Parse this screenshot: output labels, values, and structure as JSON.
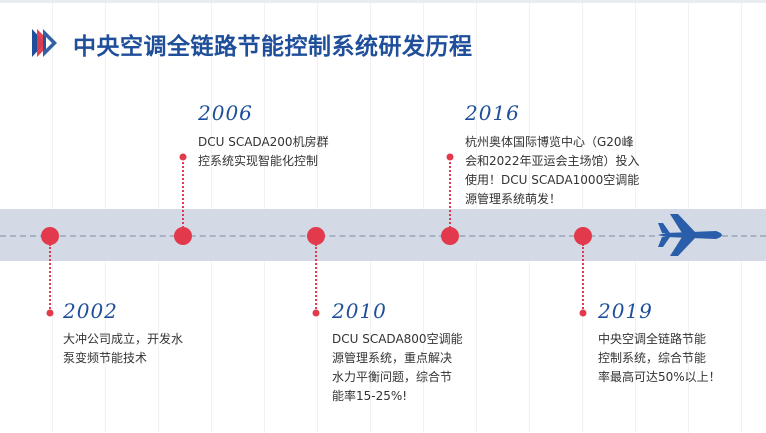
{
  "header": {
    "title": "中央空调全链路节能控制系统研发历程"
  },
  "colors": {
    "accent_blue": "#1f4f9a",
    "accent_red": "#e23a4c",
    "band": "#d3dae5"
  },
  "icons": [
    "logo-icon",
    "airplane-icon"
  ],
  "timeline": [
    {
      "year": "2002",
      "lines": [
        "大冲公司成立，开发水",
        "泵变频节能技术"
      ]
    },
    {
      "year": "2006",
      "lines": [
        "DCU SCADA200机房群",
        "控系统实现智能化控制"
      ]
    },
    {
      "year": "2010",
      "lines": [
        "DCU SCADA800空调能",
        "源管理系统，重点解决",
        "水力平衡问题，综合节",
        "能率15-25%!"
      ]
    },
    {
      "year": "2016",
      "lines": [
        "杭州奥体国际博览中心（G20峰",
        "会和2022年亚运会主场馆）投入",
        "使用！DCU SCADA1000空调能",
        "源管理系统萌发！"
      ]
    },
    {
      "year": "2019",
      "lines": [
        "中央空调全链路节能",
        "控制系统，综合节能",
        "率最高可达50%以上！"
      ]
    }
  ]
}
